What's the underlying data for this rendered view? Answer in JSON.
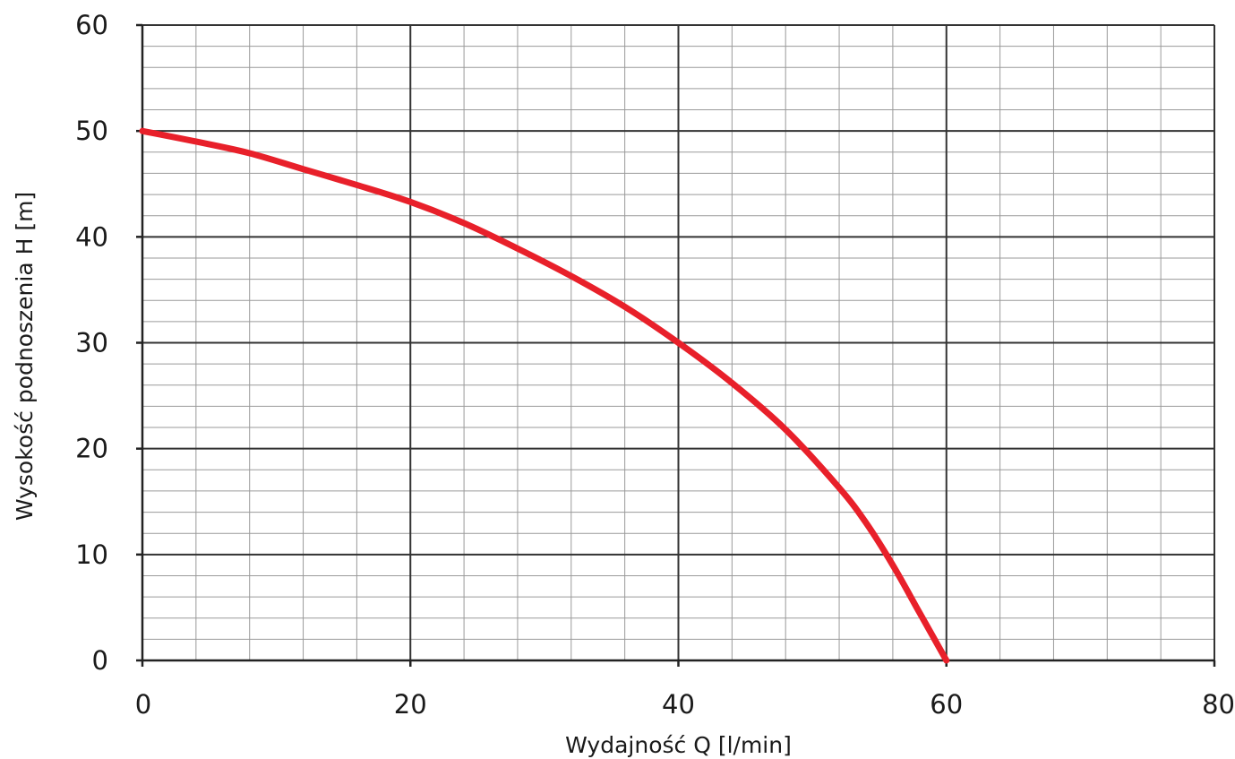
{
  "chart_data": {
    "type": "line",
    "title": "",
    "xlabel": "Wydajność Q [l/min]",
    "ylabel": "Wysokość podnoszenia H [m]",
    "xlim": [
      0,
      80
    ],
    "ylim": [
      0,
      60
    ],
    "x_ticks": [
      0,
      20,
      40,
      60,
      80
    ],
    "x_tick_labels": [
      "0",
      "20",
      "40",
      "60",
      "80"
    ],
    "y_ticks": [
      0,
      10,
      20,
      30,
      40,
      50,
      60
    ],
    "y_tick_labels": [
      "0",
      "10",
      "20",
      "30",
      "40",
      "50",
      "60"
    ],
    "x_minor_step": 4,
    "y_minor_step": 2,
    "grid": true,
    "legend": "none",
    "series": [
      {
        "color": "#e8202a",
        "x": [
          0,
          4,
          8,
          12,
          16,
          20,
          24,
          28,
          32,
          36,
          40,
          44,
          48,
          52,
          54,
          56,
          58,
          60
        ],
        "y": [
          50,
          49,
          47.9,
          46.4,
          44.9,
          43.3,
          41.3,
          38.9,
          36.3,
          33.4,
          30,
          26.2,
          21.8,
          16.3,
          13,
          9,
          4.5,
          0
        ]
      }
    ]
  }
}
